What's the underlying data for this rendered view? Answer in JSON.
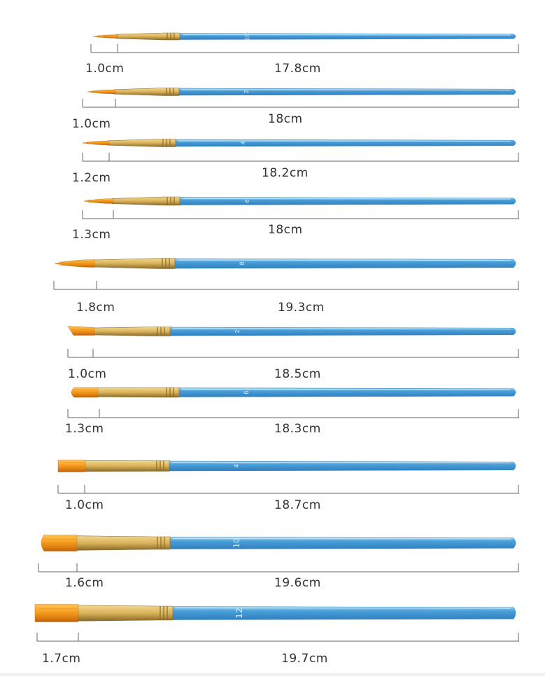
{
  "colors": {
    "handle": "#4a9fd8",
    "handle_light": "#9fd2f2",
    "handle_dark": "#2f7fbf",
    "ferrule": "#d9b25a",
    "ferrule_dark": "#8a6a2a",
    "bristle": "#f59b1a",
    "bristle_dark": "#c2620a",
    "line": "#666666"
  },
  "brushes": [
    {
      "size_mark": "2/0",
      "head_label": "1.0cm",
      "length_label": "17.8cm"
    },
    {
      "size_mark": "2",
      "head_label": "1.0cm",
      "length_label": "18cm"
    },
    {
      "size_mark": "4",
      "head_label": "1.2cm",
      "length_label": "18.2cm"
    },
    {
      "size_mark": "6",
      "head_label": "1.3cm",
      "length_label": "18cm"
    },
    {
      "size_mark": "8",
      "head_label": "1.8cm",
      "length_label": "19.3cm"
    },
    {
      "size_mark": "2",
      "head_label": "1.0cm",
      "length_label": "18.5cm"
    },
    {
      "size_mark": "6",
      "head_label": "1.3cm",
      "length_label": "18.3cm"
    },
    {
      "size_mark": "4",
      "head_label": "1.0cm",
      "length_label": "18.7cm"
    },
    {
      "size_mark": "10",
      "head_label": "1.6cm",
      "length_label": "19.6cm"
    },
    {
      "size_mark": "12",
      "head_label": "1.7cm",
      "length_label": "19.7cm"
    }
  ]
}
